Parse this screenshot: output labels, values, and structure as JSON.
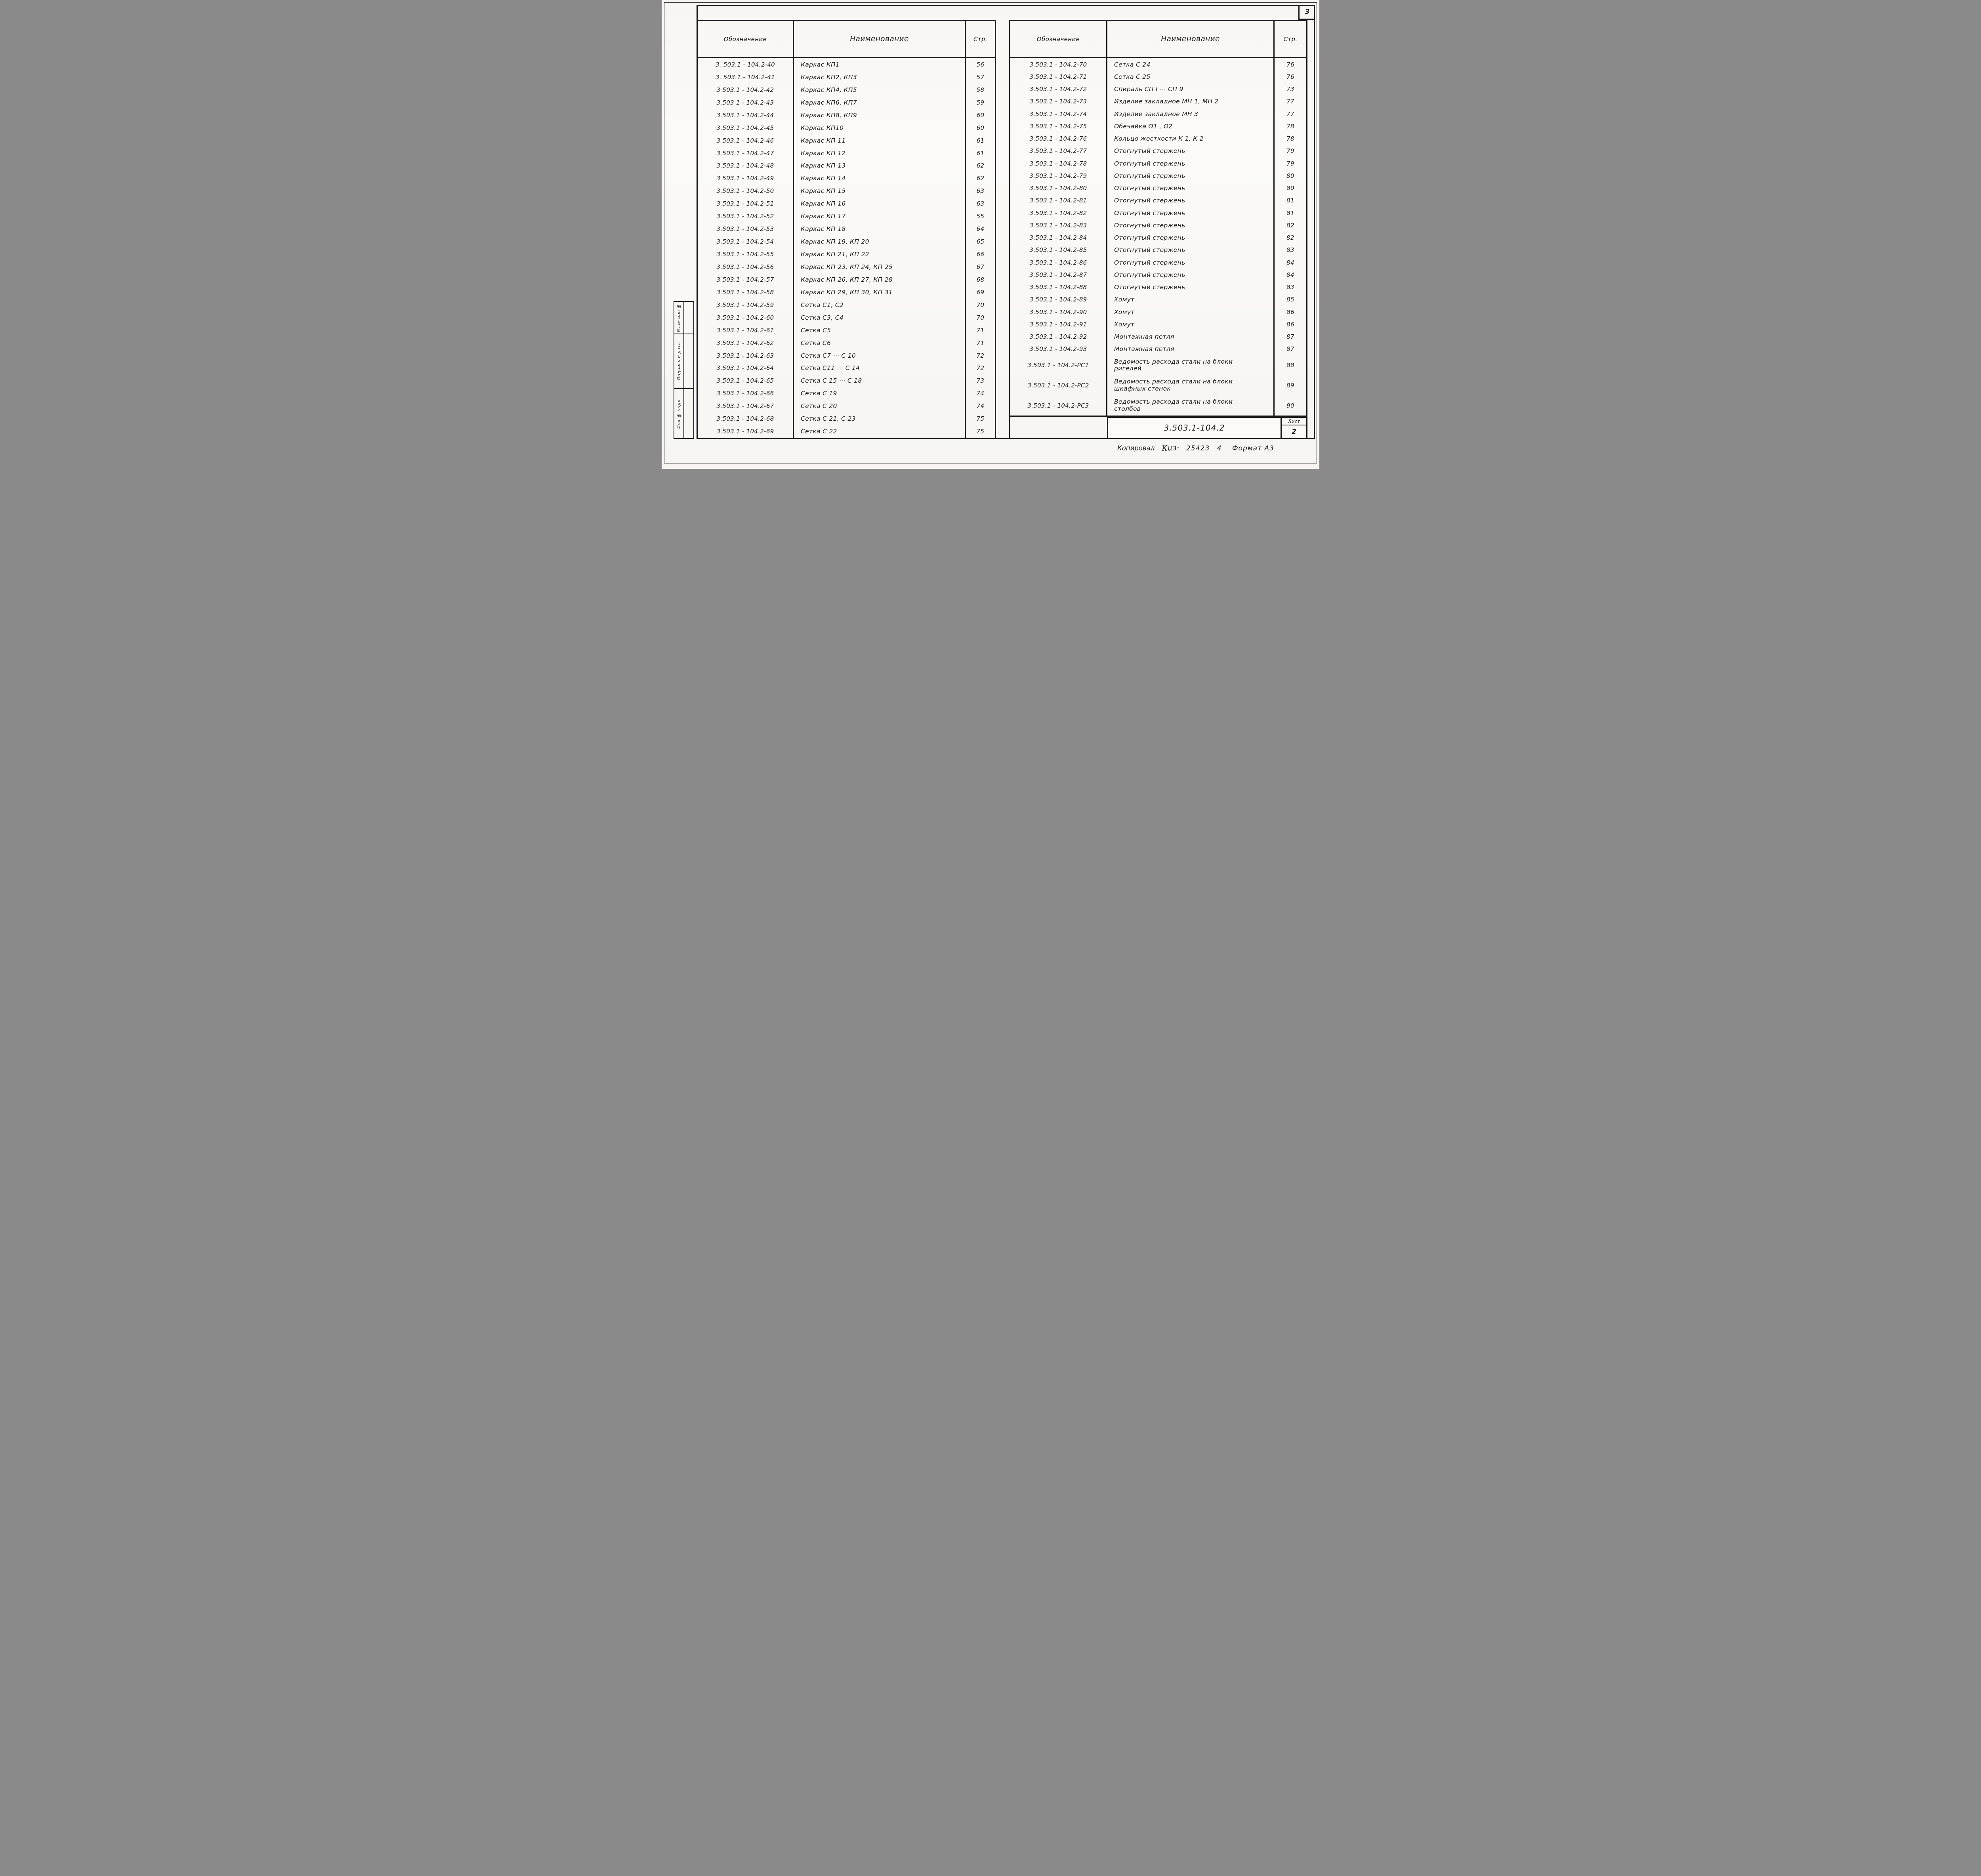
{
  "page": {
    "sheet_corner_number": "3",
    "ink_color": "#1b1b1b",
    "paper_color": "#fbfaf6"
  },
  "tables": {
    "headers": {
      "designation": "Обозначение",
      "name": "Наименование",
      "page": "Стр."
    },
    "left_rows": [
      {
        "d": "3. 503.1 - 104.2-40",
        "n": "Каркас КП1",
        "p": "56"
      },
      {
        "d": "3. 503.1 - 104.2-41",
        "n": "Каркас КП2, КП3",
        "p": "57"
      },
      {
        "d": "3 503.1 - 104.2-42",
        "n": "Каркас КП4, КП5",
        "p": "58"
      },
      {
        "d": "3.503 1 - 104.2-43",
        "n": "Каркас КП6, КП7",
        "p": "59"
      },
      {
        "d": "3.503.1 - 104.2-44",
        "n": "Каркас КП8, КП9",
        "p": "60"
      },
      {
        "d": "3.503.1 - 104.2-45",
        "n": "Каркас КП10",
        "p": "60"
      },
      {
        "d": "3 503.1 - 104.2-46",
        "n": "Каркас КП 11",
        "p": "61"
      },
      {
        "d": "3.503.1 - 104.2-47",
        "n": "Каркас КП 12",
        "p": "61"
      },
      {
        "d": "3.503.1 - 104.2-48",
        "n": "Каркас КП 13",
        "p": "62"
      },
      {
        "d": "3 503.1 - 104.2-49",
        "n": "Каркас КП 14",
        "p": "62"
      },
      {
        "d": "3.503.1 - 104.2-50",
        "n": "Каркас КП 15",
        "p": "63"
      },
      {
        "d": "3.503.1 - 104.2-51",
        "n": "Каркас КП 16",
        "p": "63"
      },
      {
        "d": "3.503.1 - 104.2-52",
        "n": "Каркас КП 17",
        "p": "55"
      },
      {
        "d": "3.503.1 - 104.2-53",
        "n": "Каркас КП 18",
        "p": "64"
      },
      {
        "d": "3.503.1 - 104.2-54",
        "n": "Каркас КП 19, КП 20",
        "p": "65"
      },
      {
        "d": "3.503.1 - 104.2-55",
        "n": "Каркас КП 21, КП 22",
        "p": "66"
      },
      {
        "d": "3.503.1 - 104.2-56",
        "n": "Каркас КП 23, КП 24, КП 25",
        "p": "67"
      },
      {
        "d": "3 503.1 - 104.2-57",
        "n": "Каркас КП 26, КП 27, КП 28",
        "p": "68"
      },
      {
        "d": "3.503.1 - 104.2-58",
        "n": "Каркас КП 29, КП 30, КП 31",
        "p": "69"
      },
      {
        "d": "3.503.1 - 104.2-59",
        "n": "Сетка С1, С2",
        "p": "70"
      },
      {
        "d": "3.503.1 - 104.2-60",
        "n": "Сетка С3, С4",
        "p": "70"
      },
      {
        "d": "3.503.1 - 104.2-61",
        "n": "Сетка С5",
        "p": "71"
      },
      {
        "d": "3.503.1 - 104.2-62",
        "n": "Сетка С6",
        "p": "71"
      },
      {
        "d": "3.503.1 - 104.2-63",
        "n": "Сетка С7 ⋯ С 10",
        "p": "72"
      },
      {
        "d": "3.503.1 - 104.2-64",
        "n": "Сетка С11 ⋯ С 14",
        "p": "72"
      },
      {
        "d": "3.503.1 - 104.2-65",
        "n": "Сетка С 15 ⋯ С 18",
        "p": "73"
      },
      {
        "d": "3.503.1 - 104.2-66",
        "n": "Сетка С 19",
        "p": "74"
      },
      {
        "d": "3.503.1 - 104.2-67",
        "n": "Сетка С 20",
        "p": "74"
      },
      {
        "d": "3.503.1 - 104.2-68",
        "n": "Сетка С 21, С 23",
        "p": "75"
      },
      {
        "d": "3.503.1 - 104.2-69",
        "n": "Сетка С 22",
        "p": "75"
      }
    ],
    "right_rows": [
      {
        "d": "3.503.1 - 104.2-70",
        "n": "Сетка С 24",
        "p": "76"
      },
      {
        "d": "3.503.1 - 104.2-71",
        "n": "Сетка С 25",
        "p": "76"
      },
      {
        "d": "3.503.1 - 104.2-72",
        "n": "Спираль СП I ⋯ СП 9",
        "p": "73"
      },
      {
        "d": "3.503.1 - 104.2-73",
        "n": "Изделие закладное МН 1, МН 2",
        "p": "77"
      },
      {
        "d": "3.503.1 - 104.2-74",
        "n": "Изделие закладное МН 3",
        "p": "77"
      },
      {
        "d": "3.503.1 - 104.2-75",
        "n": "Обечайка О1 , О2",
        "p": "78"
      },
      {
        "d": "3.503.1 - 104.2-76",
        "n": "Кольцо жесткости К 1, К 2",
        "p": "78"
      },
      {
        "d": "3.503.1 - 104.2-77",
        "n": "Отогнутый стержень",
        "p": "79"
      },
      {
        "d": "3.503.1 - 104.2-78",
        "n": "Отогнутый стержень",
        "p": "79"
      },
      {
        "d": "3.503.1 - 104.2-79",
        "n": "Отогнутый стержень",
        "p": "80"
      },
      {
        "d": "3.503.1 - 104.2-80",
        "n": "Отогнутый стержень",
        "p": "80"
      },
      {
        "d": "3.503.1 - 104.2-81",
        "n": "Отогнутый стержень",
        "p": "81"
      },
      {
        "d": "3.503.1 - 104.2-82",
        "n": "Отогнутый стержень",
        "p": "81"
      },
      {
        "d": "3.503.1 - 104.2-83",
        "n": "Отогнутый стержень",
        "p": "82"
      },
      {
        "d": "3.503.1 - 104.2-84",
        "n": "Отогнутый стержень",
        "p": "82"
      },
      {
        "d": "3.503.1 - 104.2-85",
        "n": "Отогнутый стержень",
        "p": "83"
      },
      {
        "d": "3.503.1 - 104.2-86",
        "n": "Отогнутый стержень",
        "p": "84"
      },
      {
        "d": "3.503.1 - 104.2-87",
        "n": "Отогнутый стержень",
        "p": "84"
      },
      {
        "d": "3.503.1 - 104.2-88",
        "n": "Отогнутый стержень",
        "p": "83"
      },
      {
        "d": "3.503.1 - 104.2-89",
        "n": "Хомут",
        "p": "85"
      },
      {
        "d": "3.503.1 - 104.2-90",
        "n": "Хомут",
        "p": "86"
      },
      {
        "d": "3.503.1 - 104.2-91",
        "n": "Хомут",
        "p": "86"
      },
      {
        "d": "3.503.1 - 104.2-92",
        "n": "Монтажная петля",
        "p": "87"
      },
      {
        "d": "3.503.1 - 104.2-93",
        "n": "Монтажная петля",
        "p": "87"
      },
      {
        "d": "3.503.1 - 104.2-РС1",
        "n": "Ведомость расхода стали на блоки",
        "n2": "ригелей",
        "p": "88",
        "tall": true
      },
      {
        "d": "3.503.1 - 104.2-РС2",
        "n": "Ведомость расхода стали на блоки",
        "n2": "шкафных стенок",
        "p": "89",
        "tall": true
      },
      {
        "d": "3.503.1 - 104.2-РС3",
        "n": "Ведомость расхода стали на блоки",
        "n2": "столбов",
        "p": "90",
        "tall": true
      }
    ]
  },
  "sidebar": {
    "items": [
      "Взам инв №",
      "Подпись и дата",
      "Инв № подл."
    ]
  },
  "title_block": {
    "designation": "3.503.1-104.2",
    "sheet_label": "Лист",
    "sheet_number": "2"
  },
  "footer": {
    "copied_label": "Копировал",
    "signature": "Киз-",
    "order_number": "25423",
    "extra_number": "4",
    "format_label": "Формат А3"
  }
}
